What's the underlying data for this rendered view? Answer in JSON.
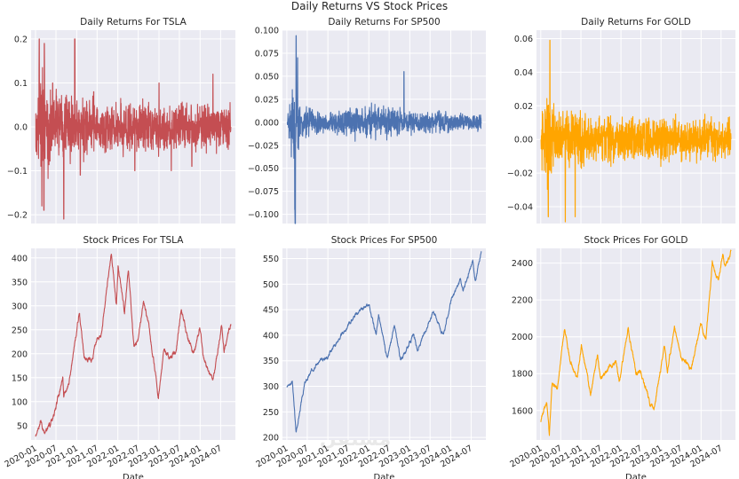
{
  "figure_title": "Daily Returns VS Stock Prices",
  "watermark": "مستقل",
  "chart_data": [
    {
      "type": "line",
      "title": "Daily Returns For TSLA",
      "color": "#c44e52",
      "xlabel": "",
      "ylabel": "",
      "ylim": [
        -0.22,
        0.22
      ],
      "yticks": [
        -0.2,
        -0.1,
        0.0,
        0.1,
        0.2
      ],
      "ytick_labels": [
        "−0.2",
        "−0.1",
        "0.0",
        "0.1",
        "0.2"
      ],
      "x_range": [
        "2020-01-02",
        "2024-09-30"
      ],
      "anchors": [
        [
          "2020-01-02",
          0.03
        ],
        [
          "2020-02-04",
          0.2
        ],
        [
          "2020-02-27",
          -0.18
        ],
        [
          "2020-03-16",
          -0.19
        ],
        [
          "2020-03-19",
          0.19
        ],
        [
          "2020-06-01",
          0.1
        ],
        [
          "2020-09-08",
          -0.21
        ],
        [
          "2020-12-15",
          0.2
        ],
        [
          "2021-02-01",
          -0.11
        ],
        [
          "2021-06-01",
          0.08
        ],
        [
          "2022-06-01",
          -0.1
        ],
        [
          "2023-01-02",
          0.1
        ],
        [
          "2023-04-20",
          -0.1
        ],
        [
          "2023-10-20",
          -0.09
        ],
        [
          "2024-04-24",
          0.12
        ],
        [
          "2024-09-30",
          0.0
        ]
      ],
      "volatility_bands": [
        [
          "2020-01-02",
          0.055
        ],
        [
          "2020-03-01",
          0.09
        ],
        [
          "2020-06-01",
          0.06
        ],
        [
          "2020-12-31",
          0.05
        ],
        [
          "2022-01-01",
          0.04
        ],
        [
          "2024-09-30",
          0.04
        ]
      ]
    },
    {
      "type": "line",
      "title": "Daily Returns For SP500",
      "color": "#4c72b0",
      "xlabel": "",
      "ylabel": "",
      "ylim": [
        -0.11,
        0.1
      ],
      "yticks": [
        -0.1,
        -0.075,
        -0.05,
        -0.025,
        0.0,
        0.025,
        0.05,
        0.075,
        0.1
      ],
      "ytick_labels": [
        "−0.100",
        "−0.075",
        "−0.050",
        "−0.025",
        "0.000",
        "0.025",
        "0.050",
        "0.075",
        "0.100"
      ],
      "x_range": [
        "2020-01-02",
        "2024-09-30"
      ],
      "anchors": [
        [
          "2020-01-02",
          0.0
        ],
        [
          "2020-03-12",
          -0.095
        ],
        [
          "2020-03-16",
          -0.12
        ],
        [
          "2020-03-24",
          0.094
        ],
        [
          "2020-04-06",
          0.07
        ],
        [
          "2022-11-10",
          0.055
        ],
        [
          "2024-09-30",
          0.0
        ]
      ],
      "volatility_bands": [
        [
          "2020-01-02",
          0.004
        ],
        [
          "2020-03-01",
          0.04
        ],
        [
          "2020-05-01",
          0.012
        ],
        [
          "2020-12-31",
          0.008
        ],
        [
          "2022-01-01",
          0.015
        ],
        [
          "2023-01-01",
          0.009
        ],
        [
          "2024-09-30",
          0.007
        ]
      ]
    },
    {
      "type": "line",
      "title": "Daily Returns For GOLD",
      "color": "#ffa500",
      "xlabel": "",
      "ylabel": "",
      "ylim": [
        -0.05,
        0.065
      ],
      "yticks": [
        -0.04,
        -0.02,
        0.0,
        0.02,
        0.04,
        0.06
      ],
      "ytick_labels": [
        "−0.04",
        "−0.02",
        "0.00",
        "0.02",
        "0.04",
        "0.06"
      ],
      "x_range": [
        "2020-01-02",
        "2024-09-30"
      ],
      "anchors": [
        [
          "2020-01-02",
          0.0
        ],
        [
          "2020-03-10",
          -0.046
        ],
        [
          "2020-03-24",
          0.059
        ],
        [
          "2020-08-11",
          -0.049
        ],
        [
          "2020-11-09",
          -0.046
        ],
        [
          "2024-09-30",
          0.0
        ]
      ],
      "volatility_bands": [
        [
          "2020-01-02",
          0.01
        ],
        [
          "2020-03-01",
          0.022
        ],
        [
          "2020-06-01",
          0.014
        ],
        [
          "2020-12-31",
          0.011
        ],
        [
          "2022-01-01",
          0.01
        ],
        [
          "2024-09-30",
          0.009
        ]
      ]
    },
    {
      "type": "line",
      "title": "Stock Prices For TSLA",
      "color": "#c44e52",
      "xlabel": "Date",
      "ylabel": "",
      "ylim": [
        20,
        420
      ],
      "yticks": [
        50,
        100,
        150,
        200,
        250,
        300,
        350,
        400
      ],
      "ytick_labels": [
        "50",
        "100",
        "150",
        "200",
        "250",
        "300",
        "350",
        "400"
      ],
      "x_range": [
        "2020-01-02",
        "2024-09-30"
      ],
      "x_ticks": [
        "2020-01",
        "2020-07",
        "2021-01",
        "2021-07",
        "2022-01",
        "2022-07",
        "2023-01",
        "2023-07",
        "2024-01",
        "2024-07"
      ],
      "points": [
        [
          "2020-01-02",
          28
        ],
        [
          "2020-02-19",
          58
        ],
        [
          "2020-03-18",
          29
        ],
        [
          "2020-06-01",
          60
        ],
        [
          "2020-08-31",
          150
        ],
        [
          "2020-09-08",
          110
        ],
        [
          "2020-11-01",
          150
        ],
        [
          "2021-01-26",
          290
        ],
        [
          "2021-03-08",
          190
        ],
        [
          "2021-05-18",
          190
        ],
        [
          "2021-06-30",
          230
        ],
        [
          "2021-08-01",
          230
        ],
        [
          "2021-11-04",
          409
        ],
        [
          "2021-12-20",
          300
        ],
        [
          "2022-01-03",
          380
        ],
        [
          "2022-03-01",
          290
        ],
        [
          "2022-04-04",
          380
        ],
        [
          "2022-05-24",
          210
        ],
        [
          "2022-06-30",
          225
        ],
        [
          "2022-08-17",
          310
        ],
        [
          "2022-10-01",
          265
        ],
        [
          "2022-12-27",
          109
        ],
        [
          "2023-02-15",
          210
        ],
        [
          "2023-04-01",
          195
        ],
        [
          "2023-05-31",
          205
        ],
        [
          "2023-07-18",
          293
        ],
        [
          "2023-09-01",
          245
        ],
        [
          "2023-10-31",
          200
        ],
        [
          "2023-12-28",
          255
        ],
        [
          "2024-01-31",
          190
        ],
        [
          "2024-04-22",
          142
        ],
        [
          "2024-07-10",
          263
        ],
        [
          "2024-08-01",
          210
        ],
        [
          "2024-09-30",
          262
        ]
      ],
      "noise": 6
    },
    {
      "type": "line",
      "title": "Stock Prices For SP500",
      "color": "#4c72b0",
      "xlabel": "Date",
      "ylabel": "",
      "ylim": [
        195,
        570
      ],
      "yticks": [
        200,
        250,
        300,
        350,
        400,
        450,
        500,
        550
      ],
      "ytick_labels": [
        "200",
        "250",
        "300",
        "350",
        "400",
        "450",
        "500",
        "550"
      ],
      "x_range": [
        "2020-01-02",
        "2024-09-30"
      ],
      "x_ticks": [
        "2020-01",
        "2020-07",
        "2021-01",
        "2021-07",
        "2022-01",
        "2022-07",
        "2023-01",
        "2023-07",
        "2024-01",
        "2024-07"
      ],
      "points": [
        [
          "2020-01-02",
          300
        ],
        [
          "2020-02-19",
          310
        ],
        [
          "2020-03-23",
          210
        ],
        [
          "2020-06-08",
          305
        ],
        [
          "2020-09-02",
          340
        ],
        [
          "2020-12-31",
          360
        ],
        [
          "2021-04-01",
          390
        ],
        [
          "2021-09-01",
          440
        ],
        [
          "2022-01-03",
          458
        ],
        [
          "2022-03-08",
          400
        ],
        [
          "2022-03-29",
          440
        ],
        [
          "2022-06-16",
          355
        ],
        [
          "2022-08-16",
          420
        ],
        [
          "2022-10-12",
          350
        ],
        [
          "2023-02-02",
          400
        ],
        [
          "2023-03-13",
          370
        ],
        [
          "2023-07-31",
          450
        ],
        [
          "2023-10-27",
          400
        ],
        [
          "2024-01-02",
          465
        ],
        [
          "2024-03-28",
          510
        ],
        [
          "2024-04-19",
          485
        ],
        [
          "2024-07-16",
          545
        ],
        [
          "2024-08-05",
          505
        ],
        [
          "2024-09-30",
          563
        ]
      ],
      "noise": 4
    },
    {
      "type": "line",
      "title": "Stock Prices For GOLD",
      "color": "#ffa500",
      "xlabel": "Date",
      "ylabel": "",
      "ylim": [
        1440,
        2480
      ],
      "yticks": [
        1600,
        1800,
        2000,
        2200,
        2400
      ],
      "ytick_labels": [
        "1600",
        "1800",
        "2000",
        "2200",
        "2400"
      ],
      "x_range": [
        "2020-01-02",
        "2024-09-30"
      ],
      "x_ticks": [
        "2020-01",
        "2020-07",
        "2021-01",
        "2021-07",
        "2022-01",
        "2022-07",
        "2023-01",
        "2023-07",
        "2024-01",
        "2024-07"
      ],
      "points": [
        [
          "2020-01-02",
          1540
        ],
        [
          "2020-02-24",
          1660
        ],
        [
          "2020-03-19",
          1480
        ],
        [
          "2020-04-14",
          1740
        ],
        [
          "2020-06-01",
          1720
        ],
        [
          "2020-08-06",
          2050
        ],
        [
          "2020-09-28",
          1870
        ],
        [
          "2020-11-30",
          1780
        ],
        [
          "2021-01-05",
          1950
        ],
        [
          "2021-03-30",
          1690
        ],
        [
          "2021-06-01",
          1900
        ],
        [
          "2021-06-30",
          1770
        ],
        [
          "2021-11-16",
          1870
        ],
        [
          "2021-12-15",
          1760
        ],
        [
          "2022-03-08",
          2050
        ],
        [
          "2022-05-16",
          1810
        ],
        [
          "2022-07-01",
          1810
        ],
        [
          "2022-09-26",
          1630
        ],
        [
          "2022-11-03",
          1620
        ],
        [
          "2023-02-01",
          1950
        ],
        [
          "2023-02-28",
          1810
        ],
        [
          "2023-05-03",
          2050
        ],
        [
          "2023-06-29",
          1910
        ],
        [
          "2023-10-05",
          1820
        ],
        [
          "2023-12-28",
          2070
        ],
        [
          "2024-02-14",
          1990
        ],
        [
          "2024-04-12",
          2400
        ],
        [
          "2024-06-07",
          2300
        ],
        [
          "2024-07-17",
          2460
        ],
        [
          "2024-08-07",
          2380
        ],
        [
          "2024-09-30",
          2470
        ]
      ],
      "noise": 14
    }
  ]
}
